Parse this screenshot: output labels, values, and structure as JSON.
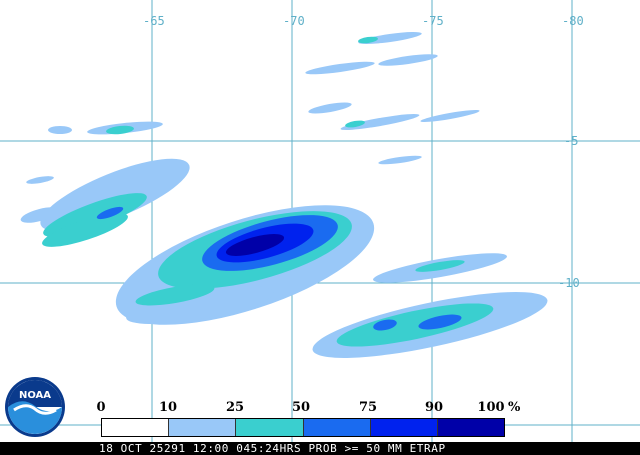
{
  "map": {
    "lon_labels": [
      "-65",
      "-70",
      "-75",
      "-80"
    ],
    "lat_labels": [
      "-5",
      "-10"
    ],
    "colors": {
      "background": "#ffffff",
      "grid": "#5fb0c8",
      "c10": "#99c8f8",
      "c25": "#3acfcf",
      "c50": "#1a6bf0",
      "c75": "#0022ee",
      "c90": "#0000a8"
    }
  },
  "legend": {
    "ticks": [
      "0",
      "10",
      "25",
      "50",
      "75",
      "90",
      "100"
    ],
    "unit": "%",
    "colors": [
      "#ffffff",
      "#99c8f8",
      "#3acfcf",
      "#1a6bf0",
      "#0022ee",
      "#0000a8"
    ]
  },
  "footer": {
    "text": "18 OCT 25291 12:00 045:24HRS PROB >= 50 MM ETRAP"
  },
  "logo": {
    "text": "NOAA",
    "icon": "noaa-logo-icon"
  }
}
